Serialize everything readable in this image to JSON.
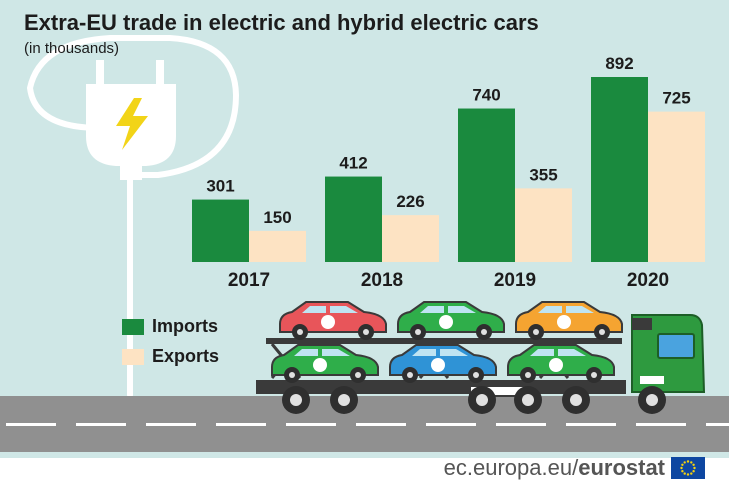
{
  "header": {
    "title": "Extra-EU trade in electric and hybrid electric cars",
    "subtitle": "(in thousands)"
  },
  "colors": {
    "imports": "#1a8a3e",
    "exports": "#fde3c3",
    "background": "#cfe7e6",
    "road": "#909090",
    "truck": "#2e9a3f"
  },
  "chart_data": {
    "type": "bar",
    "title": "Extra-EU trade in electric and hybrid electric cars",
    "subtitle": "(in thousands)",
    "categories": [
      "2017",
      "2018",
      "2019",
      "2020"
    ],
    "series": [
      {
        "name": "Imports",
        "values": [
          301,
          412,
          740,
          892
        ]
      },
      {
        "name": "Exports",
        "values": [
          150,
          226,
          355,
          725
        ]
      }
    ],
    "ylim": [
      0,
      892
    ],
    "grid": false,
    "legend": "bottom-left"
  },
  "legend": {
    "imports_label": "Imports",
    "exports_label": "Exports"
  },
  "footer": {
    "site": "ec.europa.eu/",
    "brand": "eurostat"
  },
  "icons": [
    "plug-icon",
    "lightning-icon",
    "car-carrier-truck-icon",
    "eu-flag-icon"
  ]
}
